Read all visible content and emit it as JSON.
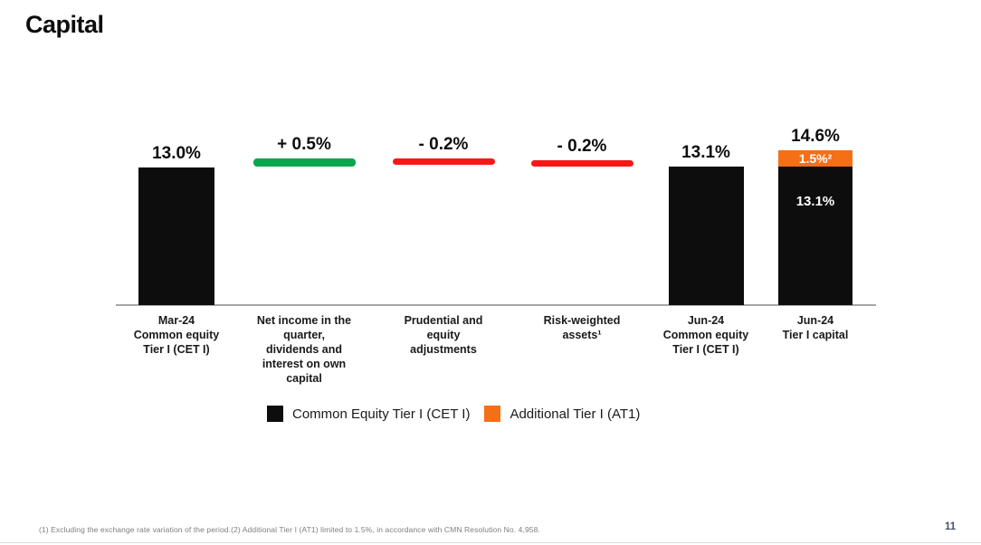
{
  "title": "Capital",
  "page_number": "11",
  "footnote": "(1) Excluding the exchange rate variation of the period.(2) Additional Tier I (AT1) limited to 1.5%, in accordance with CMN Resolution No. 4,958.",
  "chart_data": {
    "type": "bar",
    "subtype": "waterfall",
    "title": "Capital",
    "unit": "%",
    "ylim": [
      0,
      16
    ],
    "grid": false,
    "legend_position": "bottom",
    "categories": [
      "Mar-24\nCommon equity\nTier I (CET I)",
      "Net income in the\nquarter,\ndividends and\ninterest on own\ncapital",
      "Prudential and\nequity\nadjustments",
      "Risk-weighted\nassets¹",
      "Jun-24\nCommon equity\nTier I (CET I)",
      "Jun-24\nTier I capital"
    ],
    "columns": [
      {
        "kind": "total",
        "value": 13.0,
        "value_label": "13.0%",
        "color_key": "black"
      },
      {
        "kind": "delta",
        "value": 0.5,
        "value_label": "+ 0.5%",
        "start": 13.0,
        "end": 13.5,
        "color_key": "green"
      },
      {
        "kind": "delta",
        "value": -0.2,
        "value_label": "- 0.2%",
        "start": 13.5,
        "end": 13.3,
        "color_key": "red"
      },
      {
        "kind": "delta",
        "value": -0.2,
        "value_label": "- 0.2%",
        "start": 13.3,
        "end": 13.1,
        "color_key": "red"
      },
      {
        "kind": "total",
        "value": 13.1,
        "value_label": "13.1%",
        "color_key": "black"
      },
      {
        "kind": "stacked_total",
        "value": 14.6,
        "value_label": "14.6%",
        "segments": [
          {
            "name": "Common Equity Tier I (CET I)",
            "value": 13.1,
            "value_label": "13.1%",
            "color_key": "black"
          },
          {
            "name": "Additional Tier I (AT1)",
            "value": 1.5,
            "value_label": "1.5%²",
            "color_key": "orange"
          }
        ]
      }
    ],
    "colors": {
      "black": "#0d0d0d",
      "green": "#0aa64e",
      "red": "#f51818",
      "orange": "#f56f17"
    },
    "legend": [
      {
        "label": "Common Equity Tier I (CET I)",
        "color": "#0d0d0d"
      },
      {
        "label": "Additional Tier I (AT1)",
        "color": "#f56f17"
      }
    ]
  }
}
